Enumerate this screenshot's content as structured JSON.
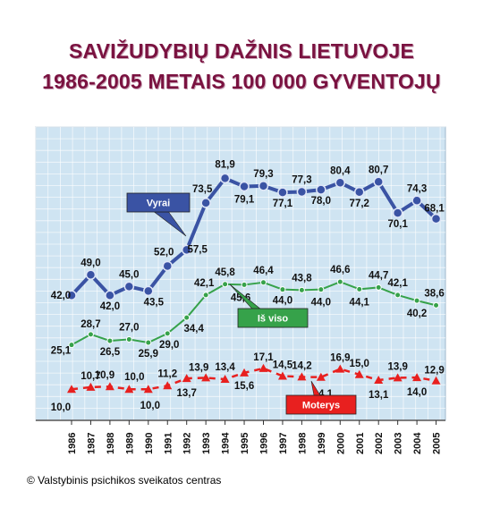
{
  "title_line1": "SAVIŽUDYBIŲ DAŽNIS LIETUVOJE",
  "title_line2": "1986-2005 METAIS 100 000 GYVENTOJŲ",
  "source": "© Valstybinis psichikos sveikatos centras",
  "colors": {
    "vyrai": "#3a53a4",
    "is_viso": "#36a24a",
    "moterys": "#e8201f",
    "plot_bg": "#cfe4f2",
    "title": "#7a1240"
  },
  "chart_data": {
    "type": "line",
    "title": "SAVIŽUDYBIŲ DAŽNIS LIETUVOJE 1986-2005 METAIS 100 000 GYVENTOJŲ",
    "categories": [
      "1986",
      "1987",
      "1988",
      "1989",
      "1990",
      "1991",
      "1992",
      "1993",
      "1994",
      "1995",
      "1996",
      "1997",
      "1998",
      "1999",
      "2000",
      "2001",
      "2002",
      "2003",
      "2004",
      "2005"
    ],
    "ylim": [
      0,
      100
    ],
    "grid": true,
    "series": [
      {
        "name": "Vyrai",
        "color": "#3a53a4",
        "values": [
          42.0,
          49.0,
          42.0,
          45.0,
          43.5,
          52.0,
          57.5,
          73.5,
          81.9,
          79.1,
          79.3,
          77.1,
          77.3,
          78.0,
          80.4,
          77.2,
          80.7,
          70.1,
          74.3,
          68.1
        ],
        "labels": [
          "42,0",
          "49,0",
          "42,0",
          "45,0",
          "43,5",
          "52,0",
          "57,5",
          "73,5",
          "81,9",
          "79,1",
          "79,3",
          "77,1",
          "77,3",
          "78,0",
          "80,4",
          "77,2",
          "80,7",
          "70,1",
          "74,3",
          "68,1"
        ]
      },
      {
        "name": "Iš viso",
        "color": "#36a24a",
        "values": [
          25.1,
          28.7,
          26.5,
          27.0,
          25.9,
          29.0,
          34.4,
          42.1,
          45.8,
          45.6,
          46.4,
          44.0,
          43.8,
          44.0,
          46.6,
          44.1,
          44.7,
          42.1,
          40.2,
          38.6
        ],
        "labels": [
          "25,1",
          "28,7",
          "26,5",
          "27,0",
          "25,9",
          "29,0",
          "34,4",
          "42,1",
          "45,8",
          "45,6",
          "46,4",
          "44,0",
          "43,8",
          "44,0",
          "46,6",
          "44,1",
          "44,7",
          "42,1",
          "40,2",
          "38,6"
        ]
      },
      {
        "name": "Moterys",
        "color": "#e8201f",
        "values": [
          10.0,
          10.7,
          10.9,
          10.0,
          10.0,
          11.2,
          13.7,
          13.9,
          13.4,
          15.6,
          17.1,
          14.5,
          14.2,
          14.1,
          16.9,
          15.0,
          13.1,
          13.9,
          14.0,
          12.9
        ],
        "labels": [
          "10,0",
          "10,7",
          "10,9",
          "10,0",
          "10,0",
          "11,2",
          "13,7",
          "13,9",
          "13,4",
          "15,6",
          "17,1",
          "14,5",
          "14,2",
          "14,1",
          "16,9",
          "15,0",
          "13,1",
          "13,9",
          "14,0",
          "12,9"
        ]
      }
    ]
  }
}
